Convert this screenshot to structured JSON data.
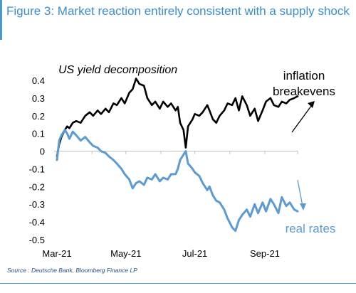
{
  "figure_title": "Figure 3: Market reaction entirely consistent with a supply shock",
  "source": "Source : Deutsche Bank, Bloomberg Finance LP",
  "colors": {
    "accent": "#3a8ecf",
    "breakevens": "#000000",
    "real_rates": "#5b9bd5"
  },
  "chart_data": {
    "type": "line",
    "title": "US yield decomposition",
    "xlabel": "",
    "ylabel": "",
    "x_range": [
      "2021-03-01",
      "2021-09-30"
    ],
    "ylim": [
      -0.5,
      0.4
    ],
    "y_ticks": [
      "0.4",
      "0.3",
      "0.2",
      "0.1",
      "0",
      "-0.1",
      "-0.2",
      "-0.3",
      "-0.4",
      "-0.5"
    ],
    "x_ticks": [
      "Mar-21",
      "May-21",
      "Jul-21",
      "Sep-21"
    ],
    "grid": false,
    "series": [
      {
        "name": "inflation breakevens",
        "label_lines": [
          "inflation",
          "breakevens"
        ],
        "color": "#000000",
        "points": [
          [
            "2021-03-01",
            -0.03
          ],
          [
            "2021-03-03",
            0.04
          ],
          [
            "2021-03-05",
            0.08
          ],
          [
            "2021-03-08",
            0.12
          ],
          [
            "2021-03-10",
            0.14
          ],
          [
            "2021-03-12",
            0.13
          ],
          [
            "2021-03-15",
            0.16
          ],
          [
            "2021-03-18",
            0.17
          ],
          [
            "2021-03-22",
            0.16
          ],
          [
            "2021-03-26",
            0.2
          ],
          [
            "2021-03-30",
            0.22
          ],
          [
            "2021-04-02",
            0.2
          ],
          [
            "2021-04-06",
            0.23
          ],
          [
            "2021-04-09",
            0.21
          ],
          [
            "2021-04-13",
            0.24
          ],
          [
            "2021-04-16",
            0.22
          ],
          [
            "2021-04-20",
            0.27
          ],
          [
            "2021-04-23",
            0.26
          ],
          [
            "2021-04-27",
            0.3
          ],
          [
            "2021-04-30",
            0.27
          ],
          [
            "2021-05-04",
            0.33
          ],
          [
            "2021-05-07",
            0.35
          ],
          [
            "2021-05-10",
            0.41
          ],
          [
            "2021-05-13",
            0.38
          ],
          [
            "2021-05-17",
            0.37
          ],
          [
            "2021-05-20",
            0.3
          ],
          [
            "2021-05-24",
            0.26
          ],
          [
            "2021-05-27",
            0.28
          ],
          [
            "2021-05-31",
            0.24
          ],
          [
            "2021-06-03",
            0.28
          ],
          [
            "2021-06-07",
            0.25
          ],
          [
            "2021-06-10",
            0.27
          ],
          [
            "2021-06-14",
            0.23
          ],
          [
            "2021-06-16",
            0.25
          ],
          [
            "2021-06-18",
            0.16
          ],
          [
            "2021-06-21",
            0.12
          ],
          [
            "2021-06-23",
            0.02
          ],
          [
            "2021-06-25",
            0.14
          ],
          [
            "2021-06-29",
            0.18
          ],
          [
            "2021-07-01",
            0.21
          ],
          [
            "2021-07-05",
            0.2
          ],
          [
            "2021-07-08",
            0.22
          ],
          [
            "2021-07-12",
            0.26
          ],
          [
            "2021-07-14",
            0.23
          ],
          [
            "2021-07-17",
            0.18
          ],
          [
            "2021-07-20",
            0.16
          ],
          [
            "2021-07-23",
            0.2
          ],
          [
            "2021-07-27",
            0.23
          ],
          [
            "2021-07-30",
            0.27
          ],
          [
            "2021-08-03",
            0.26
          ],
          [
            "2021-08-06",
            0.3
          ],
          [
            "2021-08-09",
            0.23
          ],
          [
            "2021-08-12",
            0.31
          ],
          [
            "2021-08-16",
            0.26
          ],
          [
            "2021-08-19",
            0.2
          ],
          [
            "2021-08-23",
            0.24
          ],
          [
            "2021-08-26",
            0.17
          ],
          [
            "2021-08-30",
            0.23
          ],
          [
            "2021-09-02",
            0.28
          ],
          [
            "2021-09-06",
            0.3
          ],
          [
            "2021-09-09",
            0.26
          ],
          [
            "2021-09-13",
            0.25
          ],
          [
            "2021-09-16",
            0.28
          ],
          [
            "2021-09-20",
            0.27
          ],
          [
            "2021-09-23",
            0.29
          ],
          [
            "2021-09-27",
            0.3
          ],
          [
            "2021-09-30",
            0.31
          ]
        ]
      },
      {
        "name": "real rates",
        "label_lines": [
          "real rates"
        ],
        "color": "#5b9bd5",
        "points": [
          [
            "2021-03-01",
            -0.05
          ],
          [
            "2021-03-03",
            0.06
          ],
          [
            "2021-03-05",
            0.09
          ],
          [
            "2021-03-08",
            0.12
          ],
          [
            "2021-03-10",
            0.1
          ],
          [
            "2021-03-12",
            0.07
          ],
          [
            "2021-03-15",
            0.11
          ],
          [
            "2021-03-18",
            0.09
          ],
          [
            "2021-03-22",
            0.06
          ],
          [
            "2021-03-26",
            0.08
          ],
          [
            "2021-03-30",
            0.05
          ],
          [
            "2021-04-02",
            0.03
          ],
          [
            "2021-04-06",
            0.02
          ],
          [
            "2021-04-09",
            0.0
          ],
          [
            "2021-04-13",
            -0.01
          ],
          [
            "2021-04-16",
            -0.03
          ],
          [
            "2021-04-20",
            -0.05
          ],
          [
            "2021-04-23",
            -0.07
          ],
          [
            "2021-04-27",
            -0.1
          ],
          [
            "2021-04-30",
            -0.13
          ],
          [
            "2021-05-04",
            -0.16
          ],
          [
            "2021-05-07",
            -0.21
          ],
          [
            "2021-05-10",
            -0.18
          ],
          [
            "2021-05-13",
            -0.17
          ],
          [
            "2021-05-17",
            -0.19
          ],
          [
            "2021-05-20",
            -0.15
          ],
          [
            "2021-05-24",
            -0.16
          ],
          [
            "2021-05-27",
            -0.13
          ],
          [
            "2021-05-31",
            -0.17
          ],
          [
            "2021-06-03",
            -0.15
          ],
          [
            "2021-06-07",
            -0.16
          ],
          [
            "2021-06-10",
            -0.13
          ],
          [
            "2021-06-14",
            -0.13
          ],
          [
            "2021-06-16",
            -0.1
          ],
          [
            "2021-06-18",
            -0.05
          ],
          [
            "2021-06-21",
            -0.02
          ],
          [
            "2021-06-23",
            0.0
          ],
          [
            "2021-06-25",
            -0.07
          ],
          [
            "2021-06-29",
            -0.1
          ],
          [
            "2021-07-01",
            -0.12
          ],
          [
            "2021-07-05",
            -0.14
          ],
          [
            "2021-07-08",
            -0.18
          ],
          [
            "2021-07-12",
            -0.22
          ],
          [
            "2021-07-14",
            -0.2
          ],
          [
            "2021-07-17",
            -0.25
          ],
          [
            "2021-07-20",
            -0.28
          ],
          [
            "2021-07-23",
            -0.29
          ],
          [
            "2021-07-27",
            -0.33
          ],
          [
            "2021-07-30",
            -0.38
          ],
          [
            "2021-08-03",
            -0.43
          ],
          [
            "2021-08-06",
            -0.45
          ],
          [
            "2021-08-09",
            -0.39
          ],
          [
            "2021-08-12",
            -0.36
          ],
          [
            "2021-08-16",
            -0.33
          ],
          [
            "2021-08-19",
            -0.37
          ],
          [
            "2021-08-23",
            -0.3
          ],
          [
            "2021-08-26",
            -0.35
          ],
          [
            "2021-08-30",
            -0.29
          ],
          [
            "2021-09-02",
            -0.34
          ],
          [
            "2021-09-06",
            -0.27
          ],
          [
            "2021-09-09",
            -0.3
          ],
          [
            "2021-09-13",
            -0.35
          ],
          [
            "2021-09-16",
            -0.26
          ],
          [
            "2021-09-20",
            -0.31
          ],
          [
            "2021-09-23",
            -0.29
          ],
          [
            "2021-09-27",
            -0.33
          ],
          [
            "2021-09-30",
            -0.34
          ]
        ]
      }
    ]
  }
}
